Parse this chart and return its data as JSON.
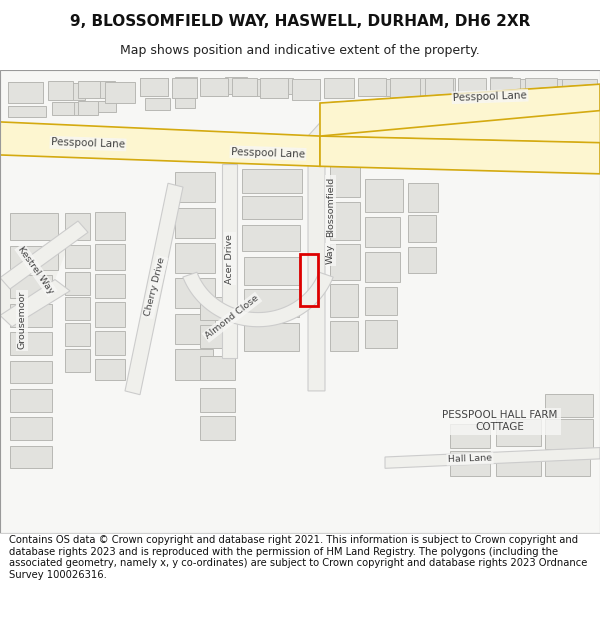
{
  "title_line1": "9, BLOSSOMFIELD WAY, HASWELL, DURHAM, DH6 2XR",
  "title_line2": "Map shows position and indicative extent of the property.",
  "footer_text": "Contains OS data © Crown copyright and database right 2021. This information is subject to Crown copyright and database rights 2023 and is reproduced with the permission of HM Land Registry. The polygons (including the associated geometry, namely x, y co-ordinates) are subject to Crown copyright and database rights 2023 Ordnance Survey 100026316.",
  "bg_color": "#ffffff",
  "map_bg": "#f7f7f5",
  "road_major_fill": "#fdf6d0",
  "road_major_edge": "#d4aa10",
  "road_minor_fill": "#f0f0ec",
  "road_minor_edge": "#cccccc",
  "building_fill": "#e2e2de",
  "building_edge": "#b8b8b4",
  "highlight_color": "#dd0000",
  "label_color": "#444444",
  "title_fs": 11,
  "sub_fs": 9,
  "footer_fs": 7.2,
  "road_label_fs": 7.5,
  "small_label_fs": 6.8
}
